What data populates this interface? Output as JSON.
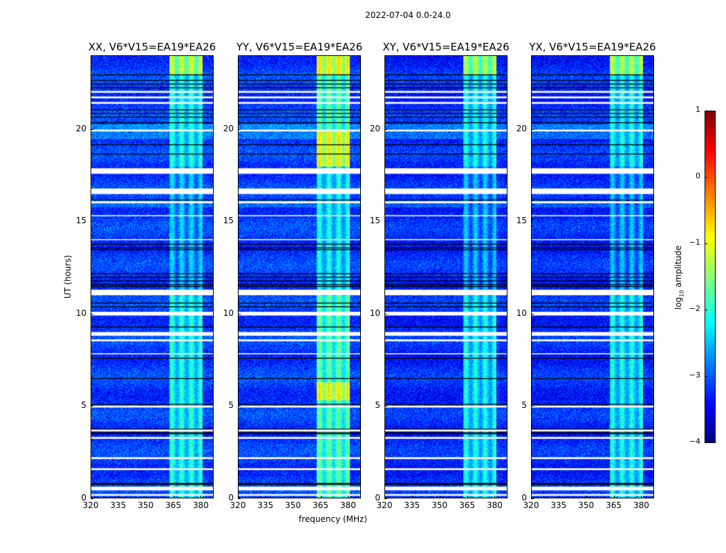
{
  "chart_data": {
    "type": "heatmap",
    "suptitle": "2022-07-04 0.0-24.0",
    "xlabel": "frequency (MHz)",
    "ylabel": "UT (hours)",
    "xlim": [
      320,
      387
    ],
    "ylim": [
      0,
      24
    ],
    "xticks": [
      "320",
      "335",
      "350",
      "365",
      "380"
    ],
    "xtick_values": [
      320,
      335,
      350,
      365,
      380
    ],
    "yticks": [
      "0",
      "5",
      "10",
      "15",
      "20"
    ],
    "ytick_values": [
      0,
      5,
      10,
      15,
      20
    ],
    "panels": [
      {
        "title": "XX, V6*V15=EA19*EA26",
        "background_log_amp": -3.1,
        "band_log_amp": -2.2
      },
      {
        "title": "YY, V6*V15=EA19*EA26",
        "background_log_amp": -3.1,
        "band_log_amp": -1.9
      },
      {
        "title": "XY, V6*V15=EA19*EA26",
        "background_log_amp": -3.2,
        "band_log_amp": -2.3
      },
      {
        "title": "YX, V6*V15=EA19*EA26",
        "background_log_amp": -3.2,
        "band_log_amp": -2.3
      }
    ],
    "rfi_band_mhz": [
      363,
      381
    ],
    "flagged_hours": [
      [
        0.1,
        0.2
      ],
      [
        0.4,
        0.6
      ],
      [
        1.5,
        1.6
      ],
      [
        2.1,
        2.2
      ],
      [
        3.2,
        3.3
      ],
      [
        3.6,
        3.7
      ],
      [
        4.9,
        5.0
      ],
      [
        7.8,
        7.85
      ],
      [
        8.5,
        8.6
      ],
      [
        8.8,
        9.0
      ],
      [
        9.9,
        10.1
      ],
      [
        11.0,
        11.3
      ],
      [
        14.0,
        14.05
      ],
      [
        15.3,
        15.35
      ],
      [
        16.0,
        16.1
      ],
      [
        16.5,
        16.8
      ],
      [
        17.6,
        17.9
      ],
      [
        19.9,
        20.0
      ],
      [
        21.4,
        21.5
      ],
      [
        21.7,
        21.8
      ],
      [
        22.0,
        22.1
      ]
    ],
    "colorbar": {
      "label_prefix": "log",
      "label_sub": "10",
      "label_suffix": " amplitude",
      "ticks": [
        "1",
        "0",
        "−1",
        "−2",
        "−3",
        "−4"
      ],
      "tick_values": [
        1,
        0,
        -1,
        -2,
        -3,
        -4
      ],
      "range": [
        -4,
        1
      ],
      "colormap": "jet"
    }
  }
}
